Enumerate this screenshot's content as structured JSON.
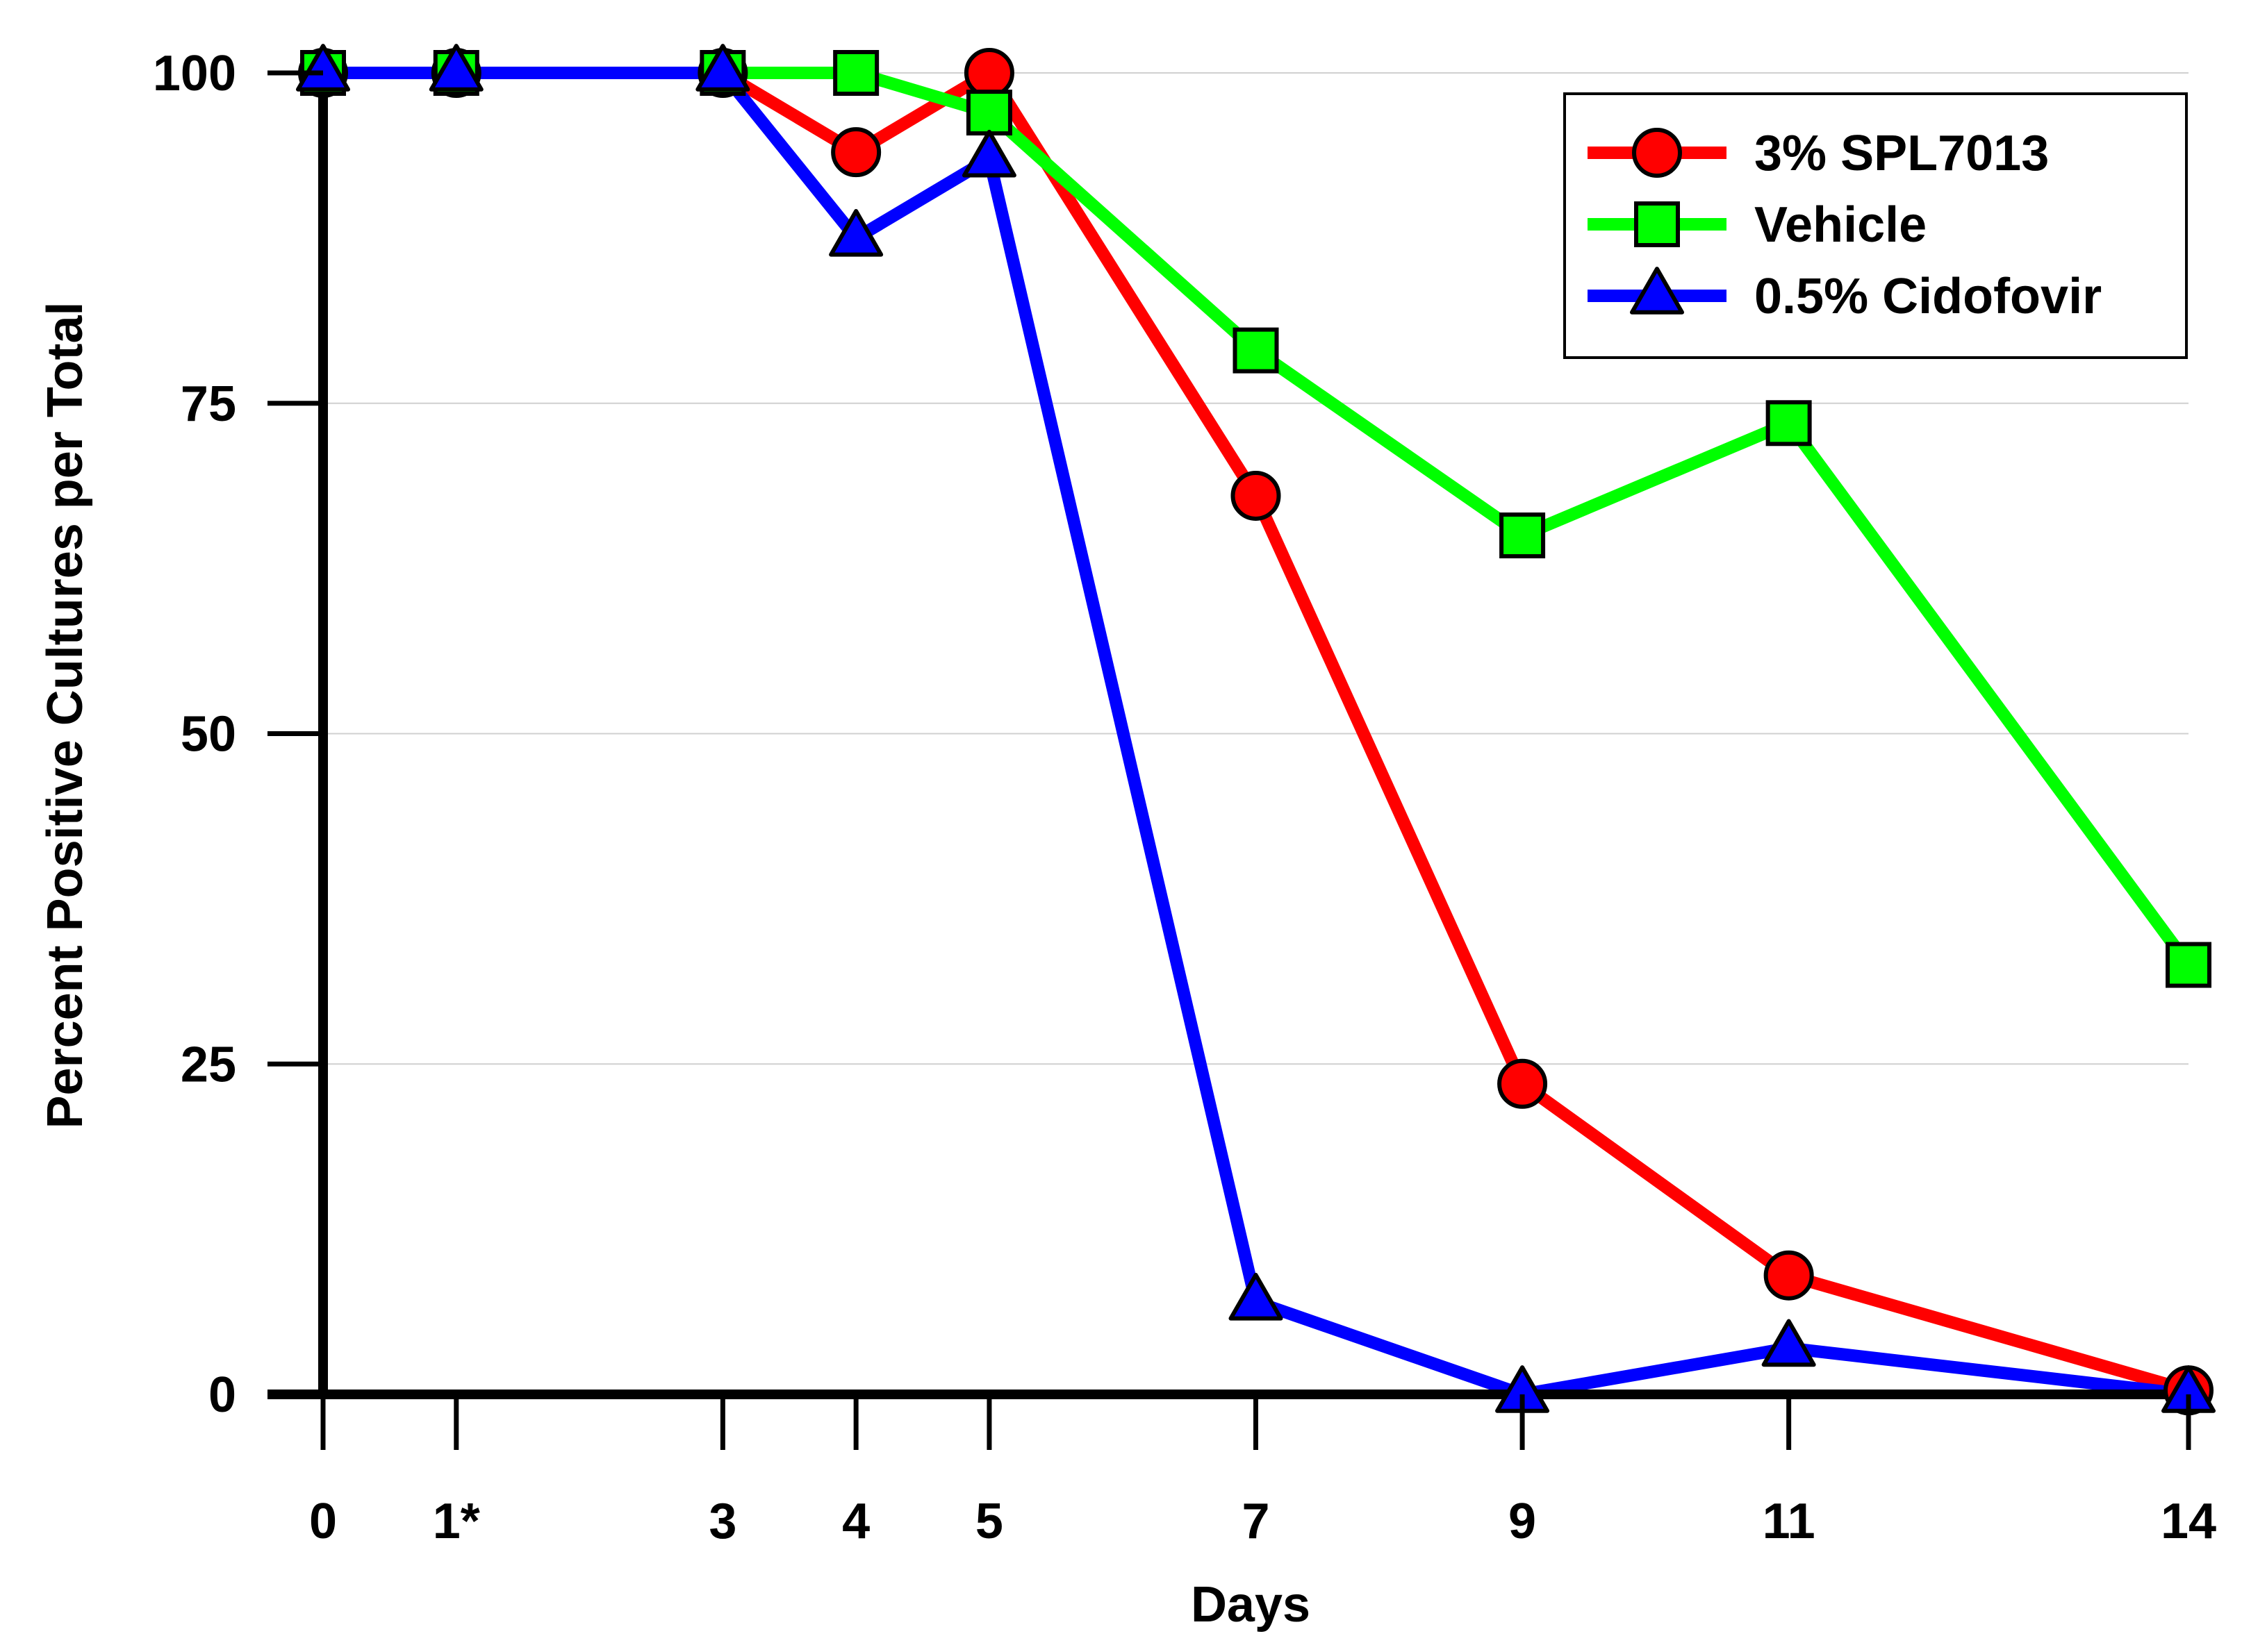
{
  "chart_data": {
    "type": "line",
    "title": "",
    "xlabel": "Days",
    "ylabel": "Percent Positive Cultures per Total",
    "x": [
      0,
      1,
      3,
      4,
      5,
      7,
      9,
      11,
      14
    ],
    "x_tick_labels": [
      "0",
      "1*",
      "3",
      "4",
      "5",
      "7",
      "9",
      "11",
      "14"
    ],
    "y_ticks": [
      0,
      25,
      50,
      75,
      100
    ],
    "ylim": [
      0,
      100
    ],
    "xlim": [
      0,
      14
    ],
    "grid": "horizontal",
    "legend_position": "top-right",
    "series": [
      {
        "name": "3% SPL7013",
        "color": "#ff0000",
        "marker": "circle",
        "values": [
          100,
          100,
          100,
          94,
          100,
          68,
          23.5,
          9,
          0.3
        ]
      },
      {
        "name": "Vehicle",
        "color": "#00ff00",
        "marker": "square",
        "values": [
          100,
          100,
          100,
          100,
          97,
          79,
          65,
          73.5,
          32.5
        ]
      },
      {
        "name": "0.5% Cidofovir",
        "color": "#0000ff",
        "marker": "triangle",
        "values": [
          100,
          100,
          100,
          87.5,
          93.5,
          7,
          0,
          3.5,
          0
        ]
      }
    ]
  }
}
